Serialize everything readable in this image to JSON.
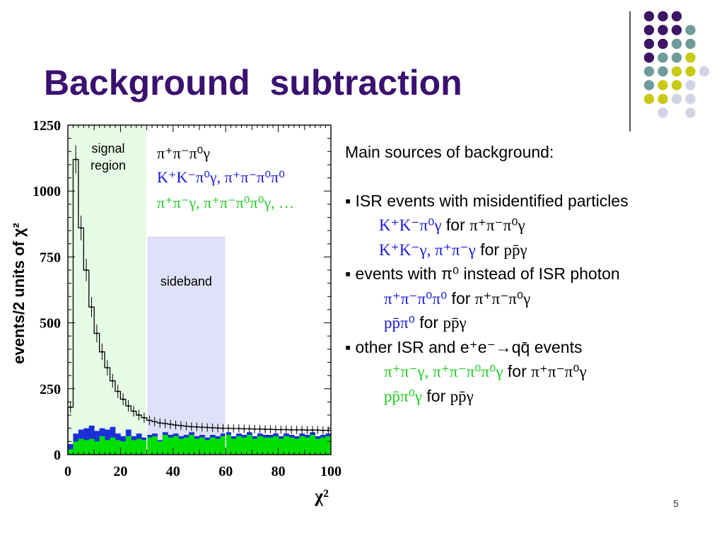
{
  "slide": {
    "title": "Background  subtraction",
    "page_number": "5",
    "accent_color": "#3a1070"
  },
  "decoration": {
    "dot_colors": {
      "purple": "#3d1565",
      "teal": "#6f9c9a",
      "olive": "#c9c917",
      "lavender": "#d3d3e6"
    },
    "dot_grid": [
      [
        "purple",
        "purple",
        "purple",
        null
      ],
      [
        "purple",
        "purple",
        "purple",
        "teal"
      ],
      [
        "purple",
        "purple",
        "teal",
        "teal"
      ],
      [
        "purple",
        "teal",
        "teal",
        "olive"
      ],
      [
        "teal",
        "teal",
        "olive",
        "olive",
        "lavender"
      ],
      [
        "teal",
        "olive",
        "olive",
        "lavender"
      ],
      [
        "olive",
        "olive",
        "lavender",
        "lavender"
      ],
      [
        null,
        "lavender",
        null,
        "lavender"
      ]
    ]
  },
  "chart_data": {
    "type": "histogram",
    "ylabel": "events/2 units of χ²",
    "xlabel": "χ²",
    "xlim": [
      0,
      100
    ],
    "ylim": [
      0,
      1250
    ],
    "x_ticks": [
      "0",
      "20",
      "40",
      "60",
      "80",
      "100"
    ],
    "y_ticks": [
      "0",
      "250",
      "500",
      "750",
      "1000",
      "1250"
    ],
    "bin_width": 2,
    "regions": [
      {
        "label_lines": [
          "signal",
          "region"
        ],
        "range": [
          0,
          30
        ],
        "color": "#e6fbe6"
      },
      {
        "label": "sideband",
        "range": [
          30,
          60
        ],
        "height": 830,
        "color": "#e0e0f8"
      }
    ],
    "legend_text": {
      "line1": "π⁺π⁻π⁰γ",
      "line2": "K⁺K⁻π⁰γ, π⁺π⁻π⁰π⁰",
      "line3": "π⁺π⁻γ, π⁺π⁻π⁰π⁰γ, …"
    },
    "series": [
      {
        "name": "data",
        "color": "#000000",
        "values": [
          180,
          1120,
          860,
          700,
          560,
          460,
          390,
          330,
          280,
          240,
          210,
          185,
          165,
          150,
          140,
          130,
          125,
          120,
          118,
          115,
          112,
          110,
          108,
          106,
          105,
          104,
          103,
          102,
          101,
          100,
          100,
          99,
          99,
          98,
          98,
          97,
          97,
          96,
          96,
          95,
          95,
          95,
          94,
          94,
          94,
          93,
          93,
          93,
          92,
          92
        ]
      },
      {
        "name": "background-blue",
        "color": "#1a2fd8",
        "values": [
          40,
          80,
          95,
          100,
          110,
          90,
          100,
          95,
          105,
          80,
          70,
          95,
          70,
          80,
          65,
          75,
          80,
          55,
          85,
          75,
          80,
          70,
          75,
          85,
          70,
          75,
          65,
          75,
          70,
          80,
          85,
          70,
          80,
          75,
          85,
          70,
          80,
          75,
          75,
          80,
          70,
          80,
          75,
          70,
          80,
          75,
          85,
          70,
          75,
          80
        ]
      },
      {
        "name": "background-green",
        "color": "#00e000",
        "values": [
          20,
          50,
          60,
          55,
          60,
          50,
          70,
          55,
          65,
          55,
          50,
          70,
          55,
          60,
          55,
          65,
          70,
          50,
          75,
          65,
          70,
          60,
          65,
          75,
          60,
          65,
          55,
          65,
          60,
          70,
          75,
          60,
          70,
          65,
          75,
          60,
          70,
          65,
          65,
          70,
          60,
          70,
          65,
          60,
          70,
          65,
          75,
          60,
          65,
          70
        ]
      }
    ]
  },
  "background_list": {
    "heading": "Main sources of background:",
    "items": [
      {
        "bullet": "▪ ISR events with misidentified particles",
        "sub": [
          {
            "a": "K⁺K⁻π⁰γ",
            "for": " for ",
            "b": "π⁺π⁻π⁰γ"
          },
          {
            "a": "K⁺K⁻γ, π⁺π⁻γ",
            "for": " for ",
            "b": "pp̄γ"
          }
        ]
      },
      {
        "bullet": "▪ events with π⁰ instead of ISR photon",
        "sub": [
          {
            "a": "π⁺π⁻π⁰π⁰",
            "for": " for ",
            "b": "π⁺π⁻π⁰γ"
          },
          {
            "a": "pp̄π⁰",
            "for": " for ",
            "b": "pp̄γ"
          }
        ]
      },
      {
        "bullet": "▪ other ISR and e⁺e⁻→qq̄ events",
        "sub": [
          {
            "a": "π⁺π⁻γ, π⁺π⁻π⁰π⁰γ",
            "for": " for ",
            "b": "π⁺π⁻π⁰γ"
          },
          {
            "a": "pp̄π⁰γ",
            "for": " for ",
            "b": "pp̄γ"
          }
        ]
      }
    ]
  }
}
